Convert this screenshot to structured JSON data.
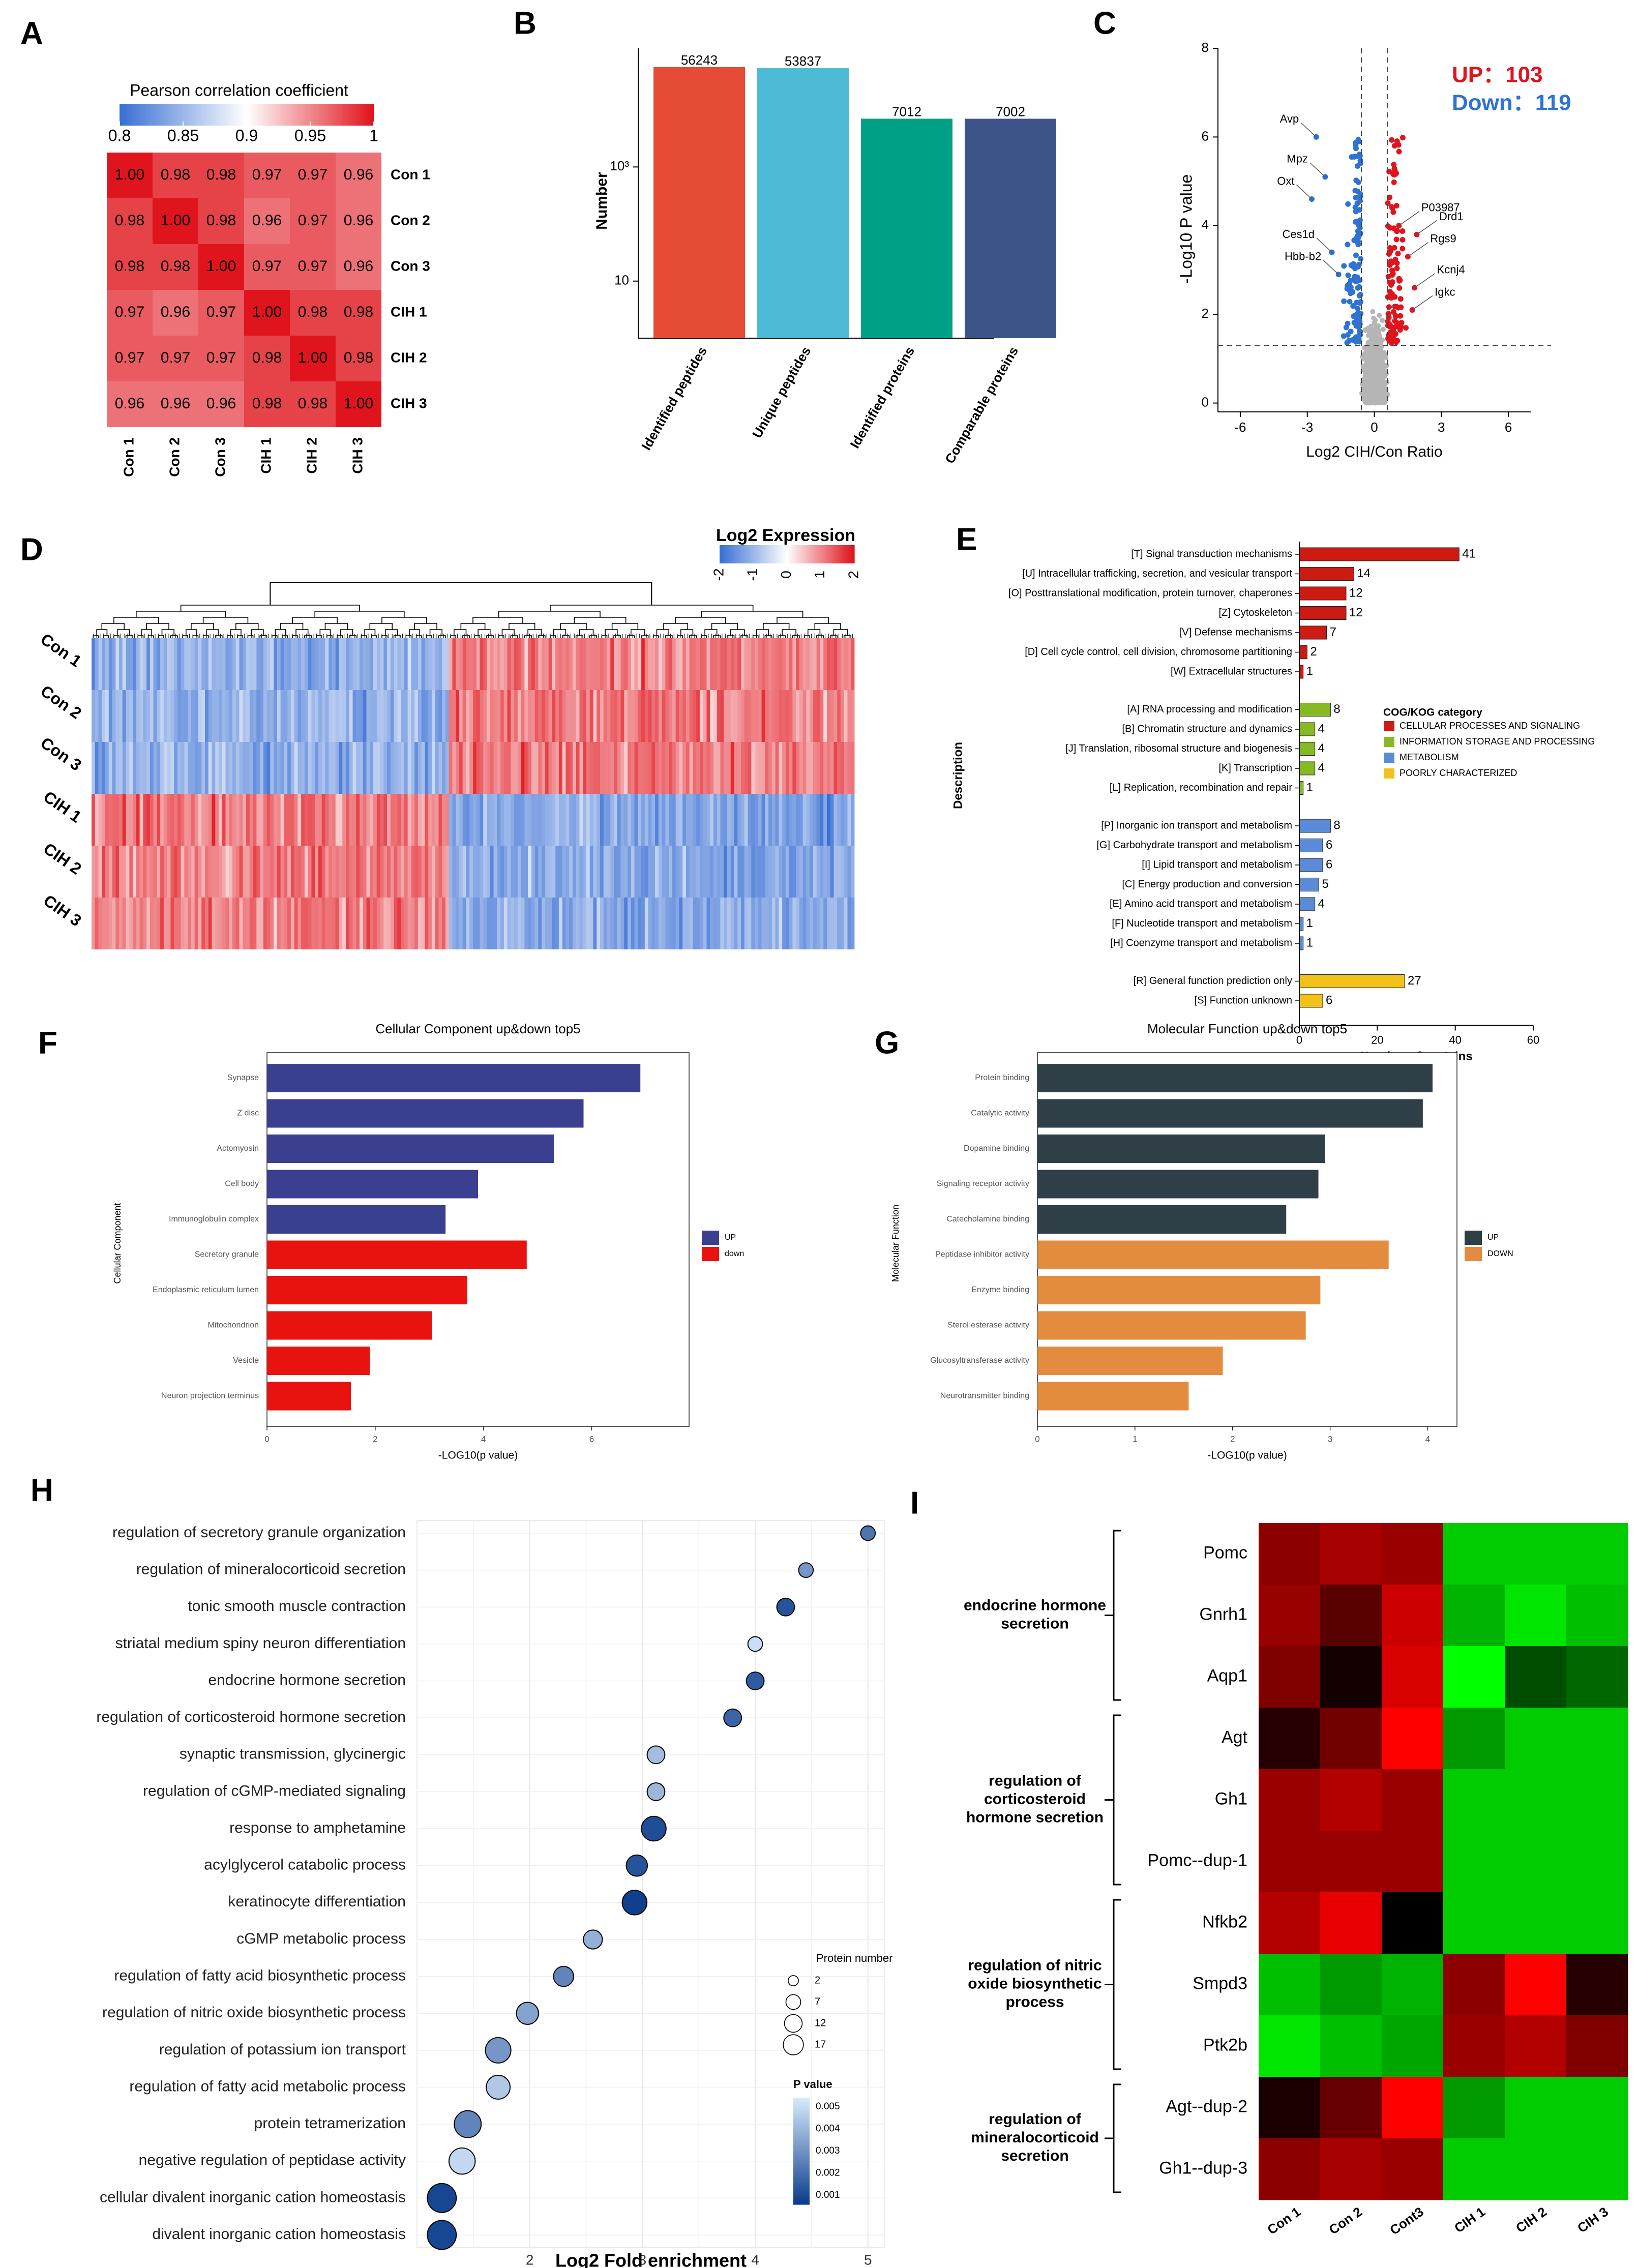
{
  "figure": {
    "panel_letters": [
      "A",
      "B",
      "C",
      "D",
      "E",
      "F",
      "G",
      "H",
      "I"
    ]
  },
  "chart_data": [
    {
      "panel": "A",
      "type": "heatmap",
      "title": "Pearson correlation coefficient",
      "colorbar_ticks": [
        "0.8",
        "0.85",
        "0.9",
        "0.95",
        "1"
      ],
      "range": [
        0.8,
        1.0
      ],
      "colors": {
        "low": "#3a70d4",
        "mid": "#ffffff",
        "high": "#e0141c"
      },
      "labels": [
        "Con 1",
        "Con 2",
        "Con 3",
        "CIH 1",
        "CIH 2",
        "CIH 3"
      ],
      "values": [
        [
          1.0,
          0.98,
          0.98,
          0.97,
          0.97,
          0.96
        ],
        [
          0.98,
          1.0,
          0.98,
          0.96,
          0.97,
          0.96
        ],
        [
          0.98,
          0.98,
          1.0,
          0.97,
          0.97,
          0.96
        ],
        [
          0.97,
          0.96,
          0.97,
          1.0,
          0.98,
          0.98
        ],
        [
          0.97,
          0.97,
          0.97,
          0.98,
          1.0,
          0.98
        ],
        [
          0.96,
          0.96,
          0.96,
          0.98,
          0.98,
          1.0
        ]
      ]
    },
    {
      "panel": "B",
      "type": "bar",
      "ylabel": "Number",
      "yscale": "log",
      "ytick_labels": [
        "10",
        "10³"
      ],
      "categories": [
        "Identified peptides",
        "Unique peptides",
        "Identified proteins",
        "Comparable proteins"
      ],
      "values": [
        56243,
        53837,
        7012,
        7002
      ],
      "value_labels": [
        "56243",
        "53837",
        "7012",
        "7002"
      ],
      "colors": [
        "#e64b35",
        "#4dbbd5",
        "#00a087",
        "#3c5488"
      ]
    },
    {
      "panel": "C",
      "type": "scatter",
      "xlabel": "Log2 CIH/Con Ratio",
      "ylabel": "-Log10 P value",
      "xlim": [
        -7,
        7
      ],
      "ylim": [
        -0.2,
        8
      ],
      "x_ticks": [
        "-6",
        "-3",
        "0",
        "3",
        "6"
      ],
      "y_ticks": [
        "0",
        "2",
        "4",
        "6",
        "8"
      ],
      "thresholds": {
        "x": [
          -0.58,
          0.58
        ],
        "y": 1.3
      },
      "up_label": "UP：103",
      "down_label": "Down：119",
      "colors": {
        "up": "#e0141c",
        "down": "#2f72d2",
        "ns": "#b5b5b5"
      },
      "annotations": [
        {
          "label": "Avp",
          "x": -2.6,
          "y": 6.0
        },
        {
          "label": "Mpz",
          "x": -2.2,
          "y": 5.1
        },
        {
          "label": "Oxt",
          "x": -2.8,
          "y": 4.6
        },
        {
          "label": "Ces1d",
          "x": -1.9,
          "y": 3.4
        },
        {
          "label": "Hbb-b2",
          "x": -1.6,
          "y": 2.9
        },
        {
          "label": "P03987",
          "x": 1.1,
          "y": 4.0
        },
        {
          "label": "Drd1",
          "x": 1.9,
          "y": 3.8
        },
        {
          "label": "Rgs9",
          "x": 1.5,
          "y": 3.3
        },
        {
          "label": "Kcnj4",
          "x": 1.8,
          "y": 2.6
        },
        {
          "label": "Igkc",
          "x": 1.7,
          "y": 2.1
        }
      ]
    },
    {
      "panel": "D",
      "type": "heatmap",
      "title": "Log2 Expression",
      "colorbar_ticks": [
        "-2",
        "-1",
        "0",
        "1",
        "2"
      ],
      "rows": [
        "Con 1",
        "Con 2",
        "Con 3",
        "CIH 1",
        "CIH 2",
        "CIH 3"
      ],
      "n_columns": 222,
      "colors": {
        "low": "#3a70d4",
        "mid": "#ffffff",
        "high": "#e0141c"
      }
    },
    {
      "panel": "E",
      "type": "bar",
      "orientation": "horizontal",
      "xlabel": "Number of proteins",
      "ylabel": "Description",
      "xlim": [
        0,
        60
      ],
      "x_ticks": [
        "0",
        "20",
        "40",
        "60"
      ],
      "legend_title": "COG/KOG category",
      "legend": [
        {
          "name": "CELLULAR PROCESSES AND SIGNALING",
          "color": "#cc1b12"
        },
        {
          "name": "INFORMATION STORAGE AND PROCESSING",
          "color": "#86b924"
        },
        {
          "name": "METABOLISM",
          "color": "#5b8ad6"
        },
        {
          "name": "POORLY CHARACTERIZED",
          "color": "#f2c21b"
        }
      ],
      "groups": [
        {
          "color": "#cc1b12",
          "items": [
            {
              "label": "[T] Signal transduction mechanisms",
              "value": 41
            },
            {
              "label": "[U] Intracellular trafficking, secretion, and vesicular transport",
              "value": 14
            },
            {
              "label": "[O] Posttranslational modification, protein turnover, chaperones",
              "value": 12
            },
            {
              "label": "[Z] Cytoskeleton",
              "value": 12
            },
            {
              "label": "[V] Defense mechanisms",
              "value": 7
            },
            {
              "label": "[D] Cell cycle control, cell division, chromosome partitioning",
              "value": 2
            },
            {
              "label": "[W] Extracellular structures",
              "value": 1
            }
          ]
        },
        {
          "color": "#86b924",
          "items": [
            {
              "label": "[A] RNA processing and modification",
              "value": 8
            },
            {
              "label": "[B] Chromatin structure and dynamics",
              "value": 4
            },
            {
              "label": "[J] Translation, ribosomal structure and biogenesis",
              "value": 4
            },
            {
              "label": "[K] Transcription",
              "value": 4
            },
            {
              "label": "[L] Replication, recombination and repair",
              "value": 1
            }
          ]
        },
        {
          "color": "#5b8ad6",
          "items": [
            {
              "label": "[P] Inorganic ion transport and metabolism",
              "value": 8
            },
            {
              "label": "[G] Carbohydrate transport and metabolism",
              "value": 6
            },
            {
              "label": "[I] Lipid transport and metabolism",
              "value": 6
            },
            {
              "label": "[C] Energy production and conversion",
              "value": 5
            },
            {
              "label": "[E] Amino acid transport and metabolism",
              "value": 4
            },
            {
              "label": "[F] Nucleotide transport and metabolism",
              "value": 1
            },
            {
              "label": "[H] Coenzyme transport and metabolism",
              "value": 1
            }
          ]
        },
        {
          "color": "#f2c21b",
          "items": [
            {
              "label": "[R] General function prediction only",
              "value": 27
            },
            {
              "label": "[S] Function unknown",
              "value": 6
            }
          ]
        }
      ]
    },
    {
      "panel": "F",
      "type": "bar",
      "orientation": "horizontal",
      "title": "Cellular Component up&down top5",
      "xlabel": "-LOG10(p value)",
      "ylabel": "Cellular Component",
      "xlim": [
        0,
        7.8
      ],
      "x_ticks": [
        0,
        2,
        4,
        6
      ],
      "legend": [
        {
          "name": "UP",
          "color": "#3b3f8f"
        },
        {
          "name": "down",
          "color": "#e8120e"
        }
      ],
      "categories": [
        "Synapse",
        "Z disc",
        "Actomyosin",
        "Cell body",
        "Immunoglobulin complex",
        "Secretory granule",
        "Endoplasmic reticulum lumen",
        "Mitochondrion",
        "Vesicle",
        "Neuron projection terminus"
      ],
      "values": [
        6.9,
        5.85,
        5.3,
        3.9,
        3.3,
        4.8,
        3.7,
        3.05,
        1.9,
        1.55
      ],
      "groups": [
        "UP",
        "UP",
        "UP",
        "UP",
        "UP",
        "down",
        "down",
        "down",
        "down",
        "down"
      ]
    },
    {
      "panel": "G",
      "type": "bar",
      "orientation": "horizontal",
      "title": "Molecular Function up&down top5",
      "xlabel": "-LOG10(p value)",
      "ylabel": "Molecular Function",
      "xlim": [
        0,
        4.3
      ],
      "x_ticks": [
        0,
        1,
        2,
        3,
        4
      ],
      "legend": [
        {
          "name": "UP",
          "color": "#2e3f47"
        },
        {
          "name": "DOWN",
          "color": "#e38b3f"
        }
      ],
      "categories": [
        "Protein binding",
        "Catalytic activity",
        "Dopamine binding",
        "Signaling receptor activity",
        "Catecholamine binding",
        "Peptidase inhibitor activity",
        "Enzyme binding",
        "Sterol esterase activity",
        "Glucosyltransferase activity",
        "Neurotransmitter binding"
      ],
      "values": [
        4.05,
        3.95,
        2.95,
        2.88,
        2.55,
        3.6,
        2.9,
        2.75,
        1.9,
        1.55
      ],
      "groups": [
        "UP",
        "UP",
        "UP",
        "UP",
        "UP",
        "DOWN",
        "DOWN",
        "DOWN",
        "DOWN",
        "DOWN"
      ]
    },
    {
      "panel": "H",
      "type": "scatter",
      "subtype": "bubble",
      "xlabel": "Log2 Fold enrichment",
      "xlim": [
        1,
        5.15
      ],
      "x_ticks": [
        2,
        3,
        4,
        5
      ],
      "size_legend_title": "Protein number",
      "size_legend": [
        2,
        7,
        12,
        17
      ],
      "color_legend_title": "P value",
      "color_legend_ticks": [
        "0.005",
        "0.004",
        "0.003",
        "0.002",
        "0.001"
      ],
      "colors": {
        "low": "#0b3d8c",
        "high": "#d7e8fb"
      },
      "points": [
        {
          "term": "regulation of secretory granule organization",
          "x": 5.0,
          "count": 2,
          "p": 0.002
        },
        {
          "term": "regulation of mineralocorticoid secretion",
          "x": 4.45,
          "count": 2,
          "p": 0.003
        },
        {
          "term": "tonic smooth muscle contraction",
          "x": 4.27,
          "count": 4,
          "p": 0.001
        },
        {
          "term": "striatal medium spiny neuron differentiation",
          "x": 4.0,
          "count": 2,
          "p": 0.0052
        },
        {
          "term": "endocrine hormone secretion",
          "x": 4.0,
          "count": 4,
          "p": 0.0012
        },
        {
          "term": "regulation of corticosteroid hormone secretion",
          "x": 3.8,
          "count": 4,
          "p": 0.0015
        },
        {
          "term": "synaptic transmission, glycinergic",
          "x": 3.12,
          "count": 4,
          "p": 0.0042
        },
        {
          "term": "regulation of cGMP-mediated signaling",
          "x": 3.12,
          "count": 4,
          "p": 0.004
        },
        {
          "term": "response to amphetamine",
          "x": 3.1,
          "count": 11,
          "p": 0.0008
        },
        {
          "term": "acylglycerol catabolic process",
          "x": 2.95,
          "count": 7,
          "p": 0.001
        },
        {
          "term": "keratinocyte differentiation",
          "x": 2.93,
          "count": 11,
          "p": 0.0004
        },
        {
          "term": "cGMP metabolic process",
          "x": 2.56,
          "count": 5,
          "p": 0.0038
        },
        {
          "term": "regulation of fatty acid biosynthetic process",
          "x": 2.3,
          "count": 6,
          "p": 0.0025
        },
        {
          "term": "regulation of nitric oxide biosynthetic process",
          "x": 1.98,
          "count": 8,
          "p": 0.0034
        },
        {
          "term": "regulation of potassium ion transport",
          "x": 1.72,
          "count": 12,
          "p": 0.003
        },
        {
          "term": "regulation of fatty acid metabolic process",
          "x": 1.72,
          "count": 10,
          "p": 0.0045
        },
        {
          "term": "protein tetramerization",
          "x": 1.45,
          "count": 14,
          "p": 0.0025
        },
        {
          "term": "negative regulation of peptidase activity",
          "x": 1.4,
          "count": 13,
          "p": 0.005
        },
        {
          "term": "cellular divalent inorganic cation homeostasis",
          "x": 1.22,
          "count": 17,
          "p": 0.0006
        },
        {
          "term": "divalent inorganic cation homeostasis",
          "x": 1.22,
          "count": 17,
          "p": 0.0006
        }
      ]
    },
    {
      "panel": "I",
      "type": "heatmap",
      "columns": [
        "Con 1",
        "Con 2",
        "Cont3",
        "CIH 1",
        "CIH 2",
        "CIH 3"
      ],
      "rows": [
        "Pomc",
        "Gnrh1",
        "Aqp1",
        "Agt",
        "Gh1",
        "Pomc--dup-1",
        "Nfkb2",
        "Smpd3",
        "Ptk2b",
        "Agt--dup-2",
        "Gh1--dup-3"
      ],
      "groups": [
        {
          "label": [
            "endocrine hormone",
            "secretion"
          ],
          "start": 0,
          "end": 2
        },
        {
          "label": [
            "regulation of",
            "corticosteroid",
            "hormone secretion"
          ],
          "start": 3,
          "end": 5
        },
        {
          "label": [
            "regulation of nitric",
            "oxide biosynthetic",
            "process"
          ],
          "start": 6,
          "end": 8
        },
        {
          "label": [
            "regulation of",
            "mineralocorticoid",
            "secretion"
          ],
          "start": 9,
          "end": 10
        }
      ],
      "values": [
        [
          0.55,
          0.65,
          0.6,
          -0.8,
          -0.8,
          -0.8
        ],
        [
          0.6,
          0.35,
          0.8,
          -0.7,
          -0.9,
          -0.75
        ],
        [
          0.5,
          0.08,
          0.85,
          -1.0,
          -0.3,
          -0.4
        ],
        [
          0.15,
          0.45,
          1.0,
          -0.6,
          -0.8,
          -0.8
        ],
        [
          0.6,
          0.7,
          0.6,
          -0.8,
          -0.8,
          -0.8
        ],
        [
          0.6,
          0.6,
          0.6,
          -0.8,
          -0.8,
          -0.8
        ],
        [
          0.7,
          0.9,
          0.0,
          -0.8,
          -0.8,
          -0.8
        ],
        [
          -0.75,
          -0.6,
          -0.7,
          0.55,
          1.0,
          0.15
        ],
        [
          -0.9,
          -0.75,
          -0.65,
          0.6,
          0.7,
          0.5
        ],
        [
          0.1,
          0.4,
          1.0,
          -0.6,
          -0.8,
          -0.8
        ],
        [
          0.55,
          0.65,
          0.6,
          -0.8,
          -0.8,
          -0.8
        ]
      ]
    }
  ]
}
